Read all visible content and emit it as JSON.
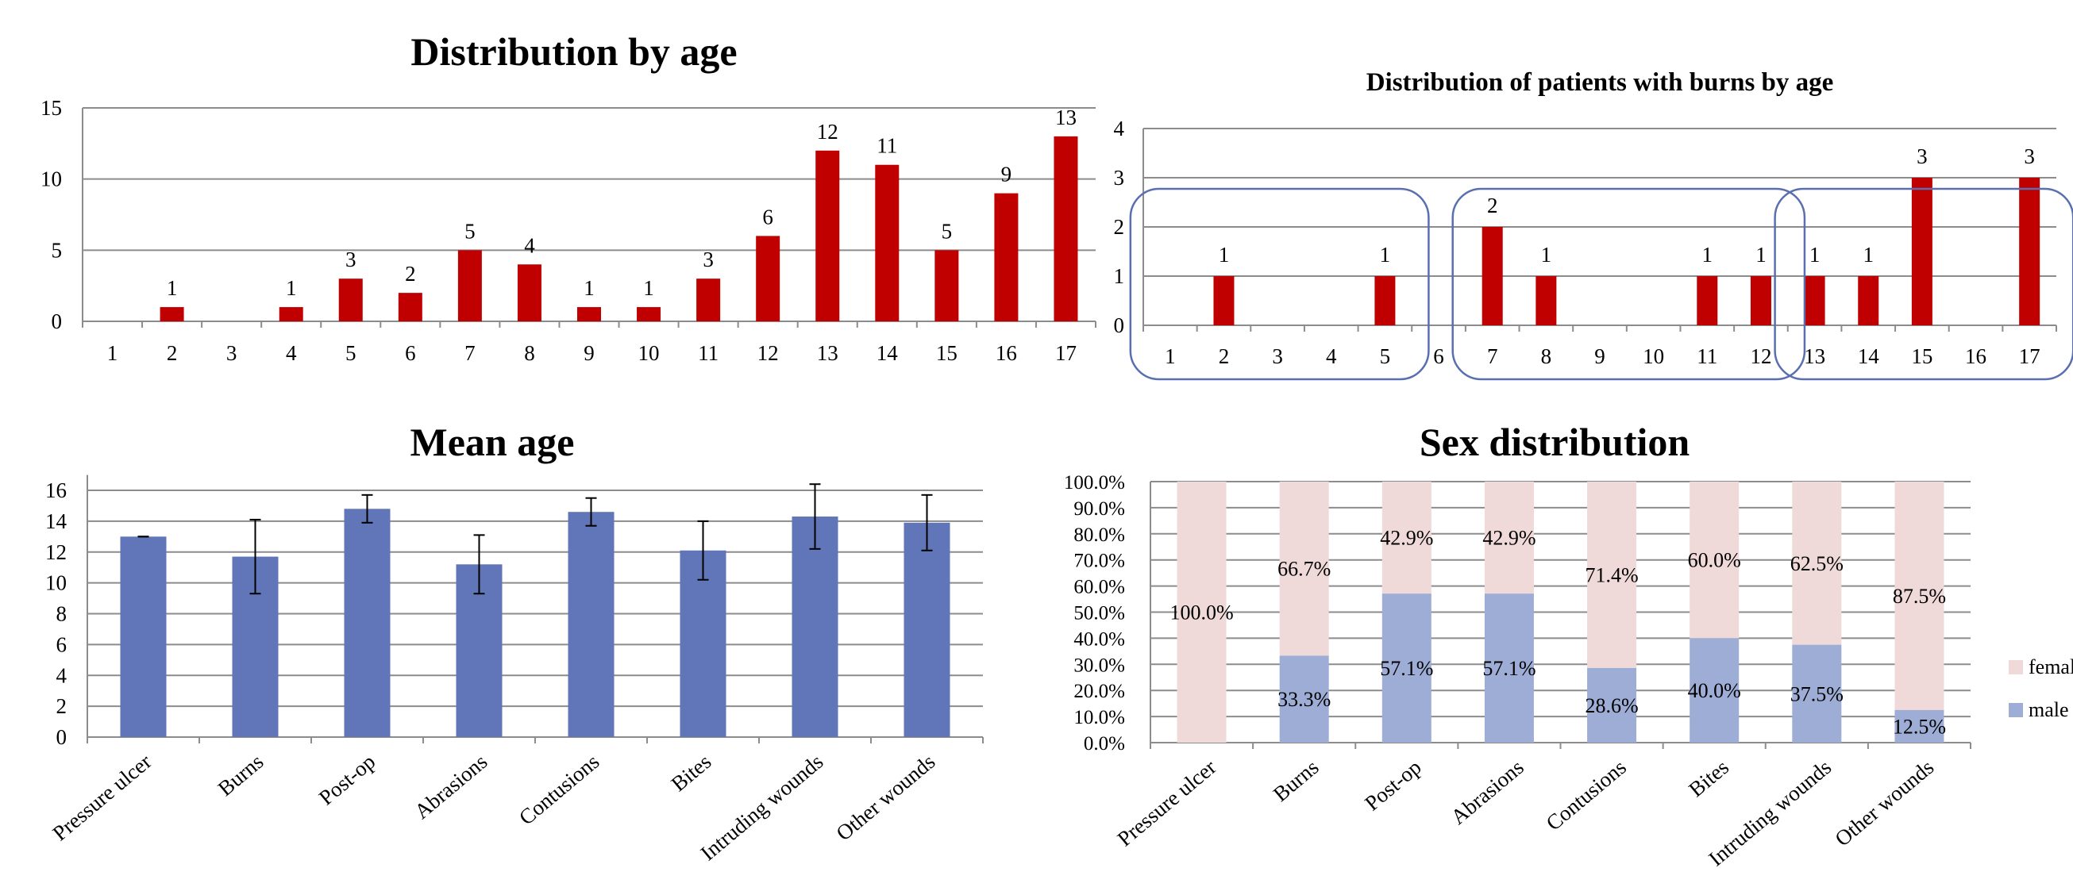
{
  "colors": {
    "red_bar": "#c00000",
    "blue_bar": "#6076b8",
    "male": "#9eadd5",
    "female": "#efd9d9",
    "grid": "#8c8c8c",
    "bracket": "#5a6fb0"
  },
  "chart_data": [
    {
      "id": "dist_age",
      "type": "bar",
      "title": "Distribution by age",
      "categories": [
        "1",
        "2",
        "3",
        "4",
        "5",
        "6",
        "7",
        "8",
        "9",
        "10",
        "11",
        "12",
        "13",
        "14",
        "15",
        "16",
        "17"
      ],
      "values": [
        0,
        1,
        0,
        1,
        3,
        2,
        5,
        4,
        1,
        1,
        3,
        6,
        12,
        11,
        5,
        9,
        13
      ],
      "labels": [
        "",
        "1",
        "",
        "1",
        "3",
        "2",
        "5",
        "4",
        "1",
        "1",
        "3",
        "6",
        "12",
        "11",
        "5",
        "9",
        "13"
      ],
      "yticks": [
        "0",
        "5",
        "10",
        "15"
      ],
      "ylim": [
        0,
        15
      ],
      "grid": true
    },
    {
      "id": "burns_age",
      "type": "bar",
      "title": "Distribution of patients with burns by age",
      "categories": [
        "1",
        "2",
        "3",
        "4",
        "5",
        "6",
        "7",
        "8",
        "9",
        "10",
        "11",
        "12",
        "13",
        "14",
        "15",
        "16",
        "17"
      ],
      "values": [
        0,
        1,
        0,
        0,
        1,
        0,
        2,
        1,
        0,
        0,
        1,
        1,
        1,
        1,
        3,
        0,
        3
      ],
      "labels": [
        "",
        "1",
        "",
        "",
        "1",
        "",
        "2",
        "1",
        "",
        "",
        "1",
        "1",
        "1",
        "1",
        "3",
        "",
        "3"
      ],
      "yticks": [
        "0",
        "1",
        "2",
        "3",
        "4"
      ],
      "ylim": [
        0,
        4
      ],
      "grid": true,
      "groups": [
        [
          1,
          5
        ],
        [
          7,
          12
        ],
        [
          13,
          17
        ]
      ]
    },
    {
      "id": "mean_age",
      "type": "bar",
      "title": "Mean age",
      "categories": [
        "Pressure ulcer",
        "Burns",
        "Post-op",
        "Abrasions",
        "Contusions",
        "Bites",
        "Intruding wounds",
        "Other wounds"
      ],
      "values": [
        13.0,
        11.7,
        14.8,
        11.2,
        14.6,
        12.1,
        14.3,
        13.9
      ],
      "errors": [
        0.0,
        2.4,
        0.9,
        1.9,
        0.9,
        1.9,
        2.1,
        1.8
      ],
      "yticks": [
        "0",
        "2",
        "4",
        "6",
        "8",
        "10",
        "12",
        "14",
        "16"
      ],
      "ylim": [
        0,
        17
      ],
      "grid": true
    },
    {
      "id": "sex_dist",
      "type": "bar",
      "stacked": true,
      "title": "Sex distribution",
      "categories": [
        "Pressure ulcer",
        "Burns",
        "Post-op",
        "Abrasions",
        "Contusions",
        "Bites",
        "Intruding wounds",
        "Other wounds"
      ],
      "series": [
        {
          "name": "male",
          "values": [
            0,
            33.3,
            57.1,
            57.1,
            28.6,
            40.0,
            37.5,
            12.5
          ],
          "labels": [
            "",
            "33.3%",
            "57.1%",
            "57.1%",
            "28.6%",
            "40.0%",
            "37.5%",
            "12.5%"
          ]
        },
        {
          "name": "female",
          "values": [
            100,
            66.7,
            42.9,
            42.9,
            71.4,
            60.0,
            62.5,
            87.5
          ],
          "labels": [
            "100.0%",
            "66.7%",
            "42.9%",
            "42.9%",
            "71.4%",
            "60.0%",
            "62.5%",
            "87.5%"
          ]
        }
      ],
      "yticks": [
        "0.0%",
        "10.0%",
        "20.0%",
        "30.0%",
        "40.0%",
        "50.0%",
        "60.0%",
        "70.0%",
        "80.0%",
        "90.0%",
        "100.0%"
      ],
      "ylim": [
        0,
        100
      ],
      "grid": true,
      "legend": {
        "placement": "right",
        "entries": [
          "female",
          "male"
        ]
      }
    }
  ]
}
